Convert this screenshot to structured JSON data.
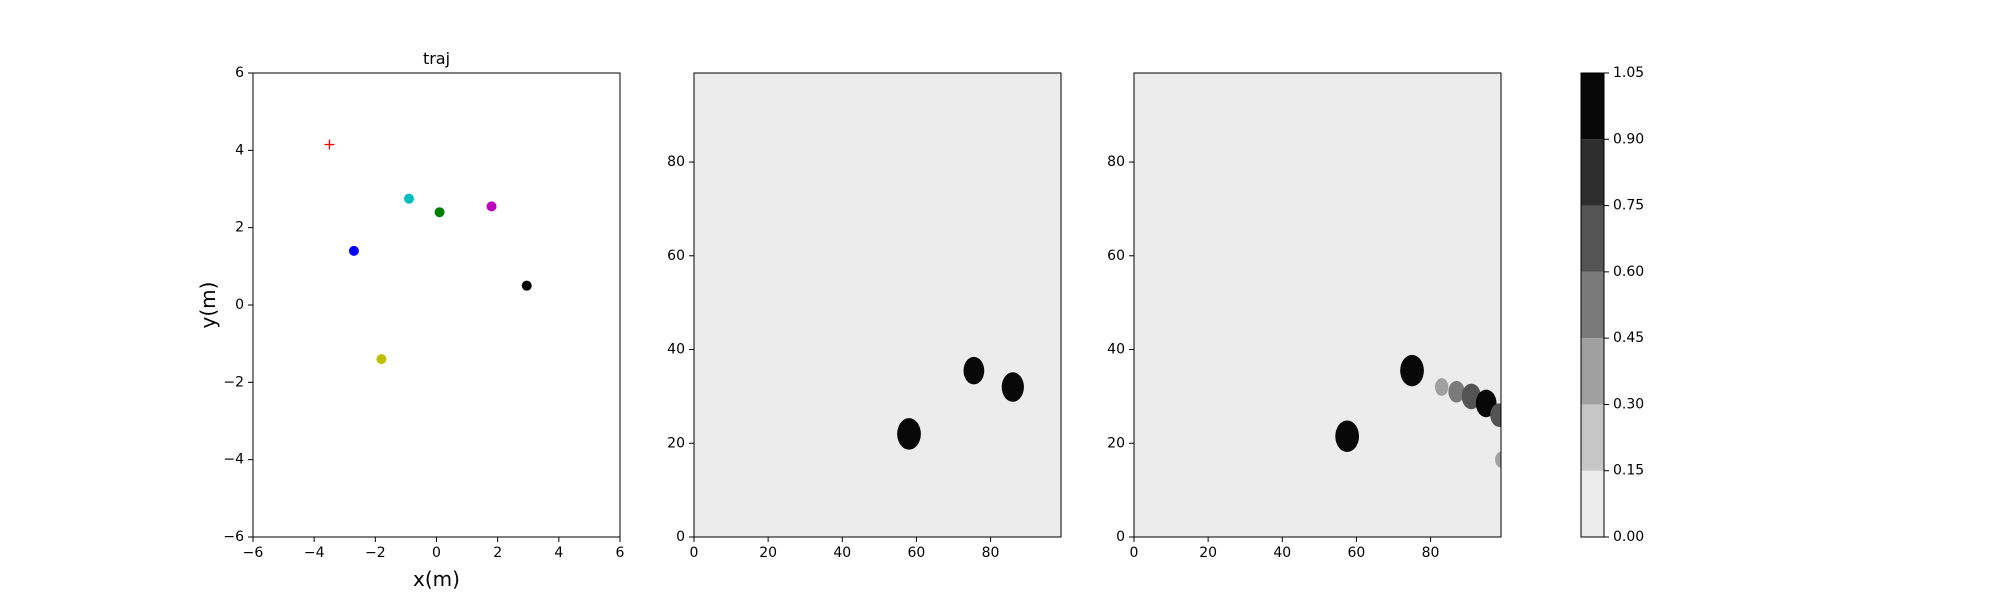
{
  "chart_data": [
    {
      "type": "scatter",
      "title": "traj",
      "xlabel": "x(m)",
      "ylabel": "y(m)",
      "xlim": [
        -6,
        6
      ],
      "ylim": [
        -6,
        6
      ],
      "xticks": [
        -6,
        -4,
        -2,
        0,
        2,
        4,
        6
      ],
      "yticks": [
        -6,
        -4,
        -2,
        0,
        2,
        4,
        6
      ],
      "grid": false,
      "points": [
        {
          "x": -2.7,
          "y": 1.4,
          "color": "#0000ff",
          "marker": "circle"
        },
        {
          "x": -0.9,
          "y": 2.75,
          "color": "#00bfbf",
          "marker": "circle"
        },
        {
          "x": 0.1,
          "y": 2.4,
          "color": "#008000",
          "marker": "circle"
        },
        {
          "x": 1.8,
          "y": 2.55,
          "color": "#bf00bf",
          "marker": "circle"
        },
        {
          "x": 2.95,
          "y": 0.5,
          "color": "#000000",
          "marker": "circle"
        },
        {
          "x": -1.8,
          "y": -1.4,
          "color": "#bfbf00",
          "marker": "circle"
        },
        {
          "x": -3.5,
          "y": 4.15,
          "color": "#ff0000",
          "marker": "plus"
        }
      ]
    },
    {
      "type": "heatmap",
      "title": "",
      "xlim": [
        0,
        99
      ],
      "ylim": [
        0,
        99
      ],
      "xticks": [
        0,
        20,
        40,
        60,
        80
      ],
      "yticks": [
        0,
        20,
        40,
        60,
        80
      ],
      "background_value": 0.05,
      "blobs": [
        {
          "x": 58,
          "y": 22,
          "r": 3.2,
          "value": 1.0
        },
        {
          "x": 75.5,
          "y": 35.5,
          "r": 2.8,
          "value": 1.0
        },
        {
          "x": 86,
          "y": 32,
          "r": 3.0,
          "value": 1.0
        }
      ]
    },
    {
      "type": "heatmap",
      "title": "",
      "xlim": [
        0,
        99
      ],
      "ylim": [
        0,
        99
      ],
      "xticks": [
        0,
        20,
        40,
        60,
        80
      ],
      "yticks": [
        0,
        20,
        40,
        60,
        80
      ],
      "background_value": 0.05,
      "blobs": [
        {
          "x": 57.5,
          "y": 21.5,
          "r": 3.2,
          "value": 1.0
        },
        {
          "x": 75,
          "y": 35.5,
          "r": 3.2,
          "value": 1.0
        },
        {
          "x": 83,
          "y": 32,
          "r": 1.8,
          "value": 0.35
        },
        {
          "x": 87,
          "y": 31,
          "r": 2.2,
          "value": 0.45
        },
        {
          "x": 91,
          "y": 30,
          "r": 2.6,
          "value": 0.6
        },
        {
          "x": 95,
          "y": 28.5,
          "r": 2.8,
          "value": 0.9
        },
        {
          "x": 98.5,
          "y": 26,
          "r": 2.4,
          "value": 0.6
        },
        {
          "x": 99,
          "y": 16.5,
          "r": 1.6,
          "value": 0.3
        }
      ]
    }
  ],
  "colorbar": {
    "levels": [
      0.0,
      0.15,
      0.3,
      0.45,
      0.6,
      0.75,
      0.9,
      1.05
    ],
    "tick_labels": [
      "0.00",
      "0.15",
      "0.30",
      "0.45",
      "0.60",
      "0.75",
      "0.90",
      "1.05"
    ],
    "colors": [
      "#ececec",
      "#c6c6c6",
      "#a0a0a0",
      "#7a7a7a",
      "#545454",
      "#2e2e2e",
      "#080808"
    ]
  }
}
